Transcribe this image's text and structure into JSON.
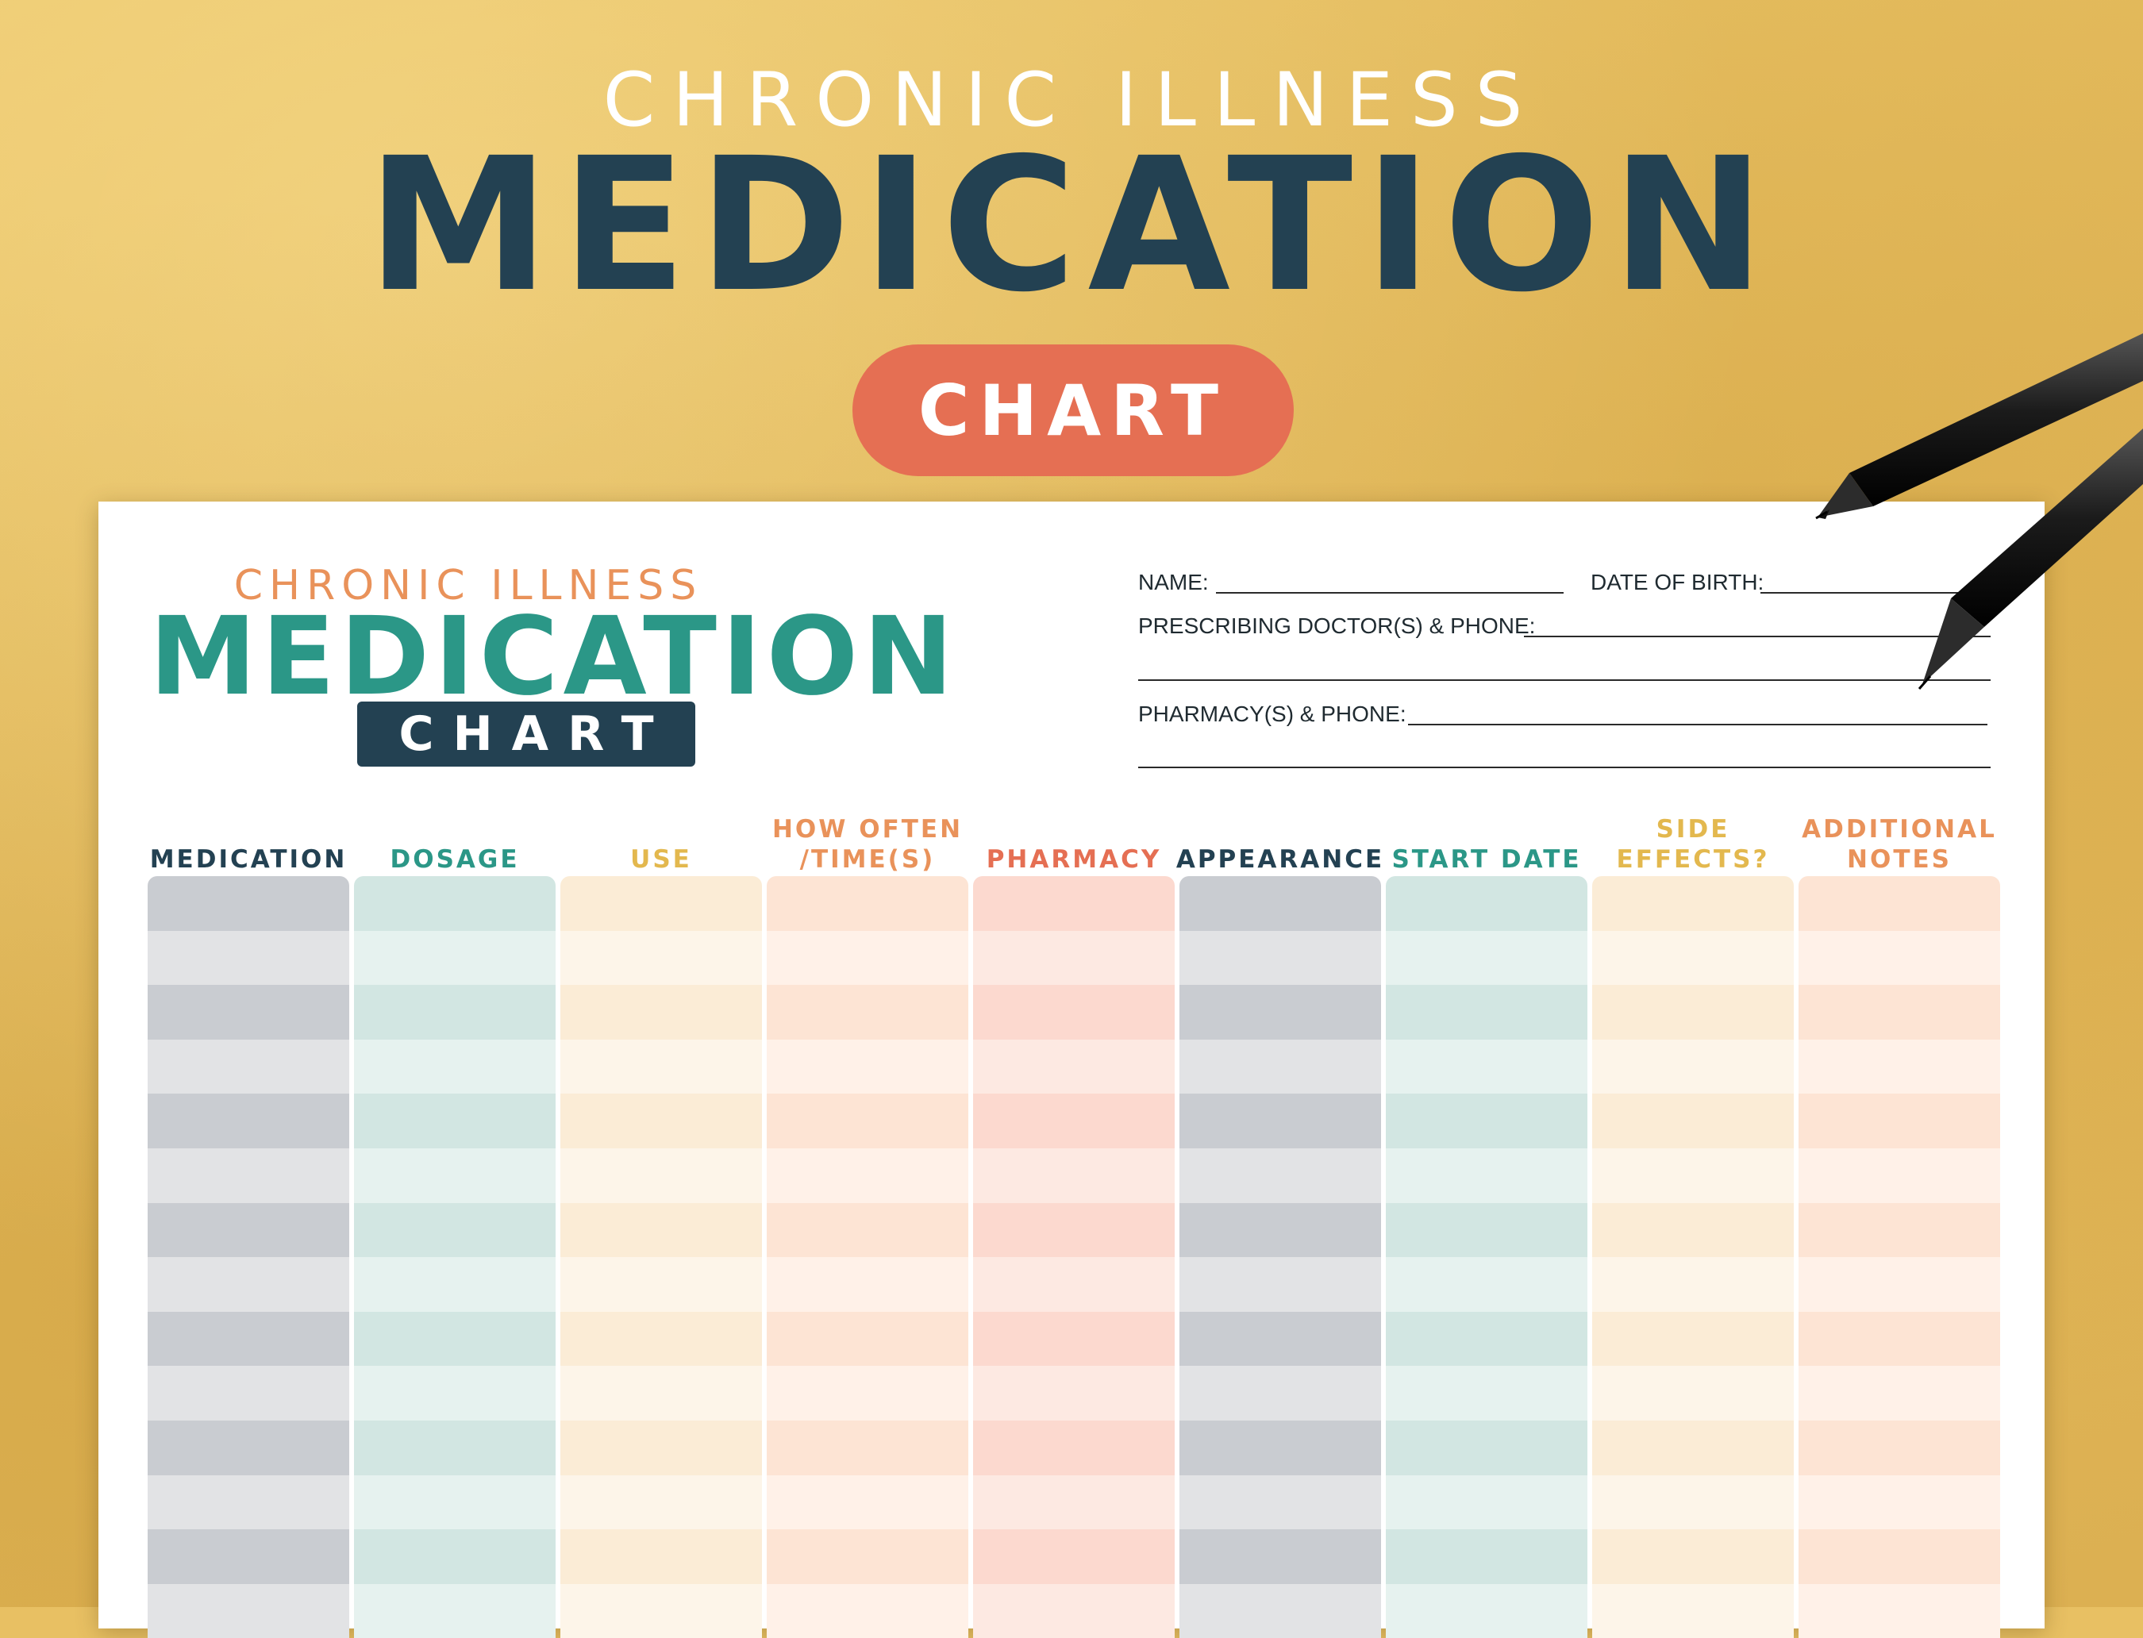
{
  "hero": {
    "subtitle": "CHRONIC ILLNESS",
    "title": "MEDICATION",
    "pill": "CHART"
  },
  "sheet": {
    "subtitle": "CHRONIC ILLNESS",
    "title": "MEDICATION",
    "pill": "CHART"
  },
  "form": {
    "name_label": "NAME:",
    "dob_label": "DATE OF BIRTH:",
    "doctor_label": "PRESCRIBING DOCTOR(S) & PHONE:",
    "pharmacy_label": "PHARMACY(S) & PHONE:"
  },
  "table": {
    "columns": [
      {
        "label": "MEDICATION",
        "color": "#234152",
        "fill_dark": "#c9ccd1",
        "fill_light": "#e2e3e5"
      },
      {
        "label": "DOSAGE",
        "color": "#2b9787",
        "fill_dark": "#d2e6e2",
        "fill_light": "#e6f2ef"
      },
      {
        "label": "USE",
        "color": "#e3b84e",
        "fill_dark": "#fbecd6",
        "fill_light": "#fdf5e9"
      },
      {
        "label": "HOW OFTEN /TIME(S)",
        "color": "#e9925a",
        "fill_dark": "#fde4d4",
        "fill_light": "#fff1e8"
      },
      {
        "label": "PHARMACY",
        "color": "#e56f53",
        "fill_dark": "#fcd9cf",
        "fill_light": "#fde9e2"
      },
      {
        "label": "APPEARANCE",
        "color": "#234152",
        "fill_dark": "#c9ccd1",
        "fill_light": "#e2e3e5"
      },
      {
        "label": "START DATE",
        "color": "#2b9787",
        "fill_dark": "#d2e6e2",
        "fill_light": "#e6f2ef"
      },
      {
        "label": "SIDE EFFECTS?",
        "color": "#e3b84e",
        "fill_dark": "#fbecd6",
        "fill_light": "#fdf5e9"
      },
      {
        "label": "ADDITIONAL NOTES",
        "color": "#e9925a",
        "fill_dark": "#fde4d4",
        "fill_light": "#fff1e8"
      }
    ],
    "row_count": 14
  }
}
